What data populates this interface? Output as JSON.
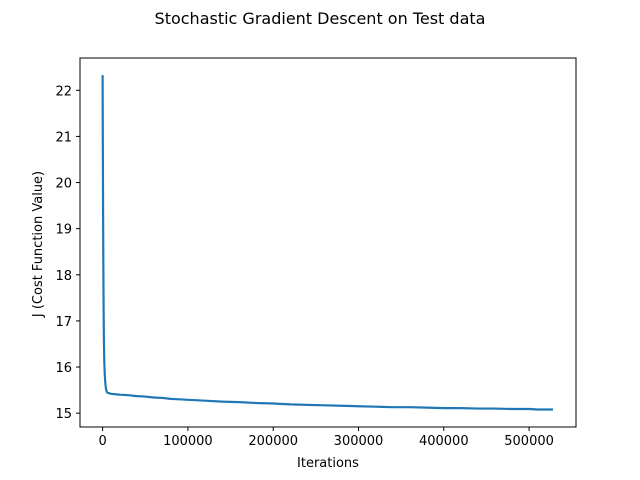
{
  "chart_data": {
    "type": "line",
    "title": "Stochastic Gradient Descent on Test data",
    "xlabel": "Iterations",
    "ylabel": "J (Cost Function Value)",
    "xlim": [
      -26500,
      555000
    ],
    "ylim": [
      14.7,
      22.7
    ],
    "x_ticks": [
      0,
      100000,
      200000,
      300000,
      400000,
      500000
    ],
    "y_ticks": [
      15,
      16,
      17,
      18,
      19,
      20,
      21,
      22
    ],
    "grid": false,
    "legend": "none",
    "series": [
      {
        "color": "#1f77b4",
        "x": [
          0,
          300,
          600,
          900,
          1200,
          1500,
          2000,
          2500,
          3000,
          3500,
          4000,
          5000,
          6000,
          8000,
          10000,
          15000,
          20000,
          30000,
          40000,
          50000,
          60000,
          70000,
          80000,
          90000,
          100000,
          120000,
          140000,
          160000,
          180000,
          200000,
          220000,
          240000,
          260000,
          280000,
          300000,
          320000,
          340000,
          360000,
          380000,
          400000,
          420000,
          440000,
          460000,
          480000,
          500000,
          510000,
          520000,
          528000
        ],
        "y": [
          22.33,
          20.6,
          19.2,
          18.1,
          17.2,
          16.6,
          16.1,
          15.85,
          15.7,
          15.6,
          15.52,
          15.46,
          15.44,
          15.43,
          15.42,
          15.41,
          15.4,
          15.39,
          15.37,
          15.36,
          15.34,
          15.33,
          15.31,
          15.3,
          15.29,
          15.27,
          15.25,
          15.24,
          15.22,
          15.21,
          15.19,
          15.18,
          15.17,
          15.16,
          15.15,
          15.14,
          15.13,
          15.13,
          15.12,
          15.11,
          15.11,
          15.1,
          15.1,
          15.09,
          15.09,
          15.08,
          15.08,
          15.08
        ]
      }
    ]
  }
}
